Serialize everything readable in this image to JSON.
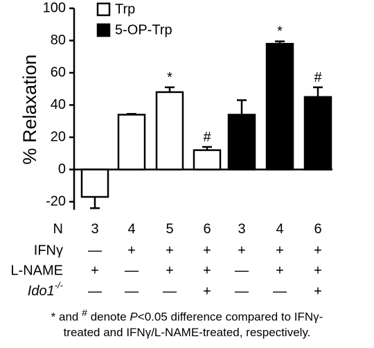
{
  "chart_data": {
    "type": "bar",
    "ylabel": "% Relaxation",
    "ylim": [
      -25,
      100
    ],
    "yticks": [
      -20,
      0,
      20,
      40,
      60,
      80,
      100
    ],
    "grid": false,
    "legend_position": "top-left",
    "series": [
      {
        "name": "Trp",
        "fill": "#ffffff",
        "values": [
          -17,
          34,
          48,
          12
        ],
        "errors": [
          7,
          0.5,
          3,
          2
        ],
        "annotations": [
          "",
          "",
          "*",
          "#"
        ]
      },
      {
        "name": "5-OP-Trp",
        "fill": "#000000",
        "values": [
          34,
          78,
          45
        ],
        "errors": [
          9,
          1.5,
          6
        ],
        "annotations": [
          "",
          "*",
          "#"
        ]
      }
    ],
    "rows": [
      {
        "label": "N",
        "values": [
          "3",
          "4",
          "5",
          "6",
          "3",
          "4",
          "6"
        ]
      },
      {
        "label": "IFNγ",
        "values": [
          "—",
          "+",
          "+",
          "+",
          "+",
          "+",
          "+"
        ]
      },
      {
        "label": "L-NAME",
        "values": [
          "+",
          "—",
          "+",
          "+",
          "—",
          "+",
          "+"
        ]
      },
      {
        "label_main": "Ido1",
        "label_sup": "-/-",
        "values": [
          "—",
          "—",
          "—",
          "+",
          "—",
          "—",
          "+"
        ]
      }
    ]
  },
  "footnote": {
    "part1": "* and ",
    "hash": "#",
    "part2": " denote ",
    "p": "P",
    "part3": "<0.05 difference compared to IFNγ-",
    "line2": "treated and IFNγ/L-NAME-treated, respectively."
  }
}
